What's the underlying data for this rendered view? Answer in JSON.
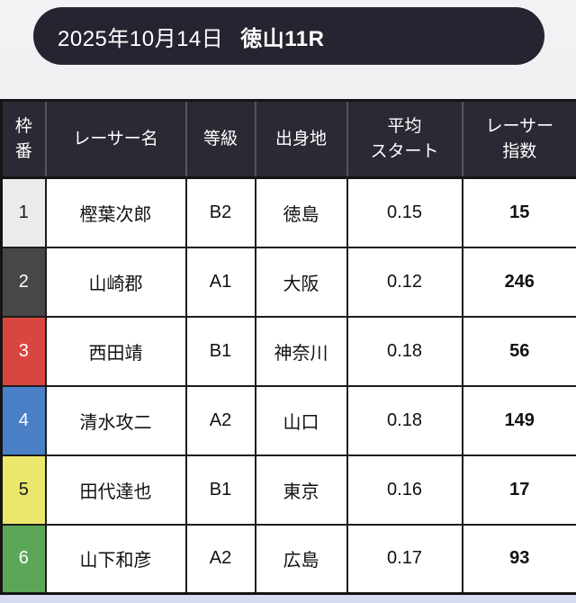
{
  "page": {
    "background_top": "#f2f2f5",
    "background_bottom": "#d6dbf0"
  },
  "banner": {
    "date": "2025年10月14日",
    "race": "徳山11R",
    "background": "#262430",
    "text_color": "#ffffff"
  },
  "table": {
    "header_background": "#2b2933",
    "border_color": "#141414",
    "columns": [
      {
        "key": "frame",
        "label": "枠\n番"
      },
      {
        "key": "name",
        "label": "レーサー名"
      },
      {
        "key": "grade",
        "label": "等級"
      },
      {
        "key": "origin",
        "label": "出身地"
      },
      {
        "key": "avg_start",
        "label": "平均\nスタート"
      },
      {
        "key": "index",
        "label": "レーサー\n指数"
      }
    ],
    "frame_colors": [
      "#ebebeb",
      "#474747",
      "#d8463f",
      "#4b80c7",
      "#ebe76d",
      "#5ca65a"
    ],
    "rows": [
      {
        "frame": "1",
        "name": "樫葉次郎",
        "grade": "B2",
        "origin": "徳島",
        "avg_start": "0.15",
        "index": "15",
        "frame_style": "background:#ebebeb;color:#1a1a1a"
      },
      {
        "frame": "2",
        "name": "山崎郡",
        "grade": "A1",
        "origin": "大阪",
        "avg_start": "0.12",
        "index": "246",
        "frame_style": "background:#474747;color:#ffffff"
      },
      {
        "frame": "3",
        "name": "西田靖",
        "grade": "B1",
        "origin": "神奈川",
        "avg_start": "0.18",
        "index": "56",
        "frame_style": "background:#d8463f;color:#ffffff"
      },
      {
        "frame": "4",
        "name": "清水攻二",
        "grade": "A2",
        "origin": "山口",
        "avg_start": "0.18",
        "index": "149",
        "frame_style": "background:#4b80c7;color:#ffffff"
      },
      {
        "frame": "5",
        "name": "田代達也",
        "grade": "B1",
        "origin": "東京",
        "avg_start": "0.16",
        "index": "17",
        "frame_style": "background:#ebe76d;color:#1a1a1a"
      },
      {
        "frame": "6",
        "name": "山下和彦",
        "grade": "A2",
        "origin": "広島",
        "avg_start": "0.17",
        "index": "93",
        "frame_style": "background:#5ca65a;color:#ffffff"
      }
    ]
  }
}
